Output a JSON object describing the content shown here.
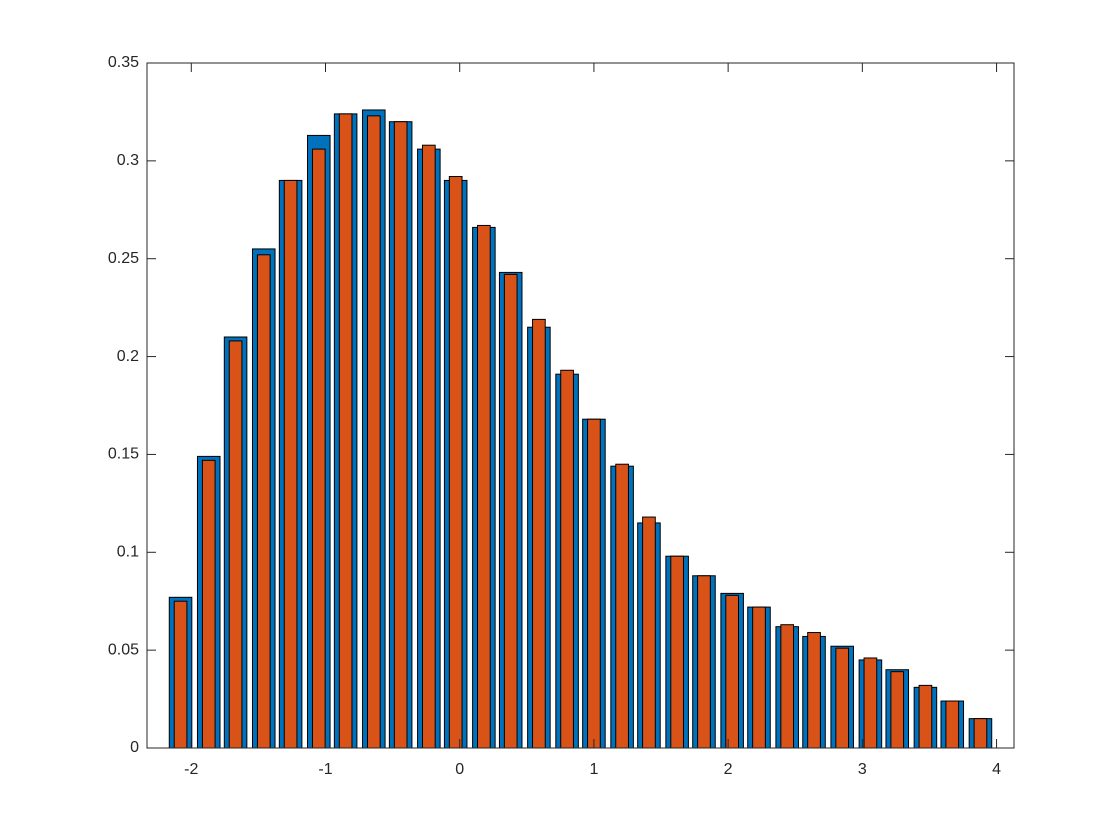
{
  "chart_data": {
    "type": "bar",
    "x": [
      -2.08,
      -1.87,
      -1.67,
      -1.46,
      -1.26,
      -1.05,
      -0.85,
      -0.64,
      -0.44,
      -0.23,
      -0.03,
      0.18,
      0.38,
      0.59,
      0.8,
      1.0,
      1.21,
      1.41,
      1.62,
      1.82,
      2.03,
      2.23,
      2.44,
      2.64,
      2.85,
      3.06,
      3.26,
      3.47,
      3.67,
      3.88
    ],
    "series": [
      {
        "color": "#0072BD",
        "values": [
          0.077,
          0.149,
          0.21,
          0.255,
          0.29,
          0.313,
          0.324,
          0.326,
          0.32,
          0.306,
          0.29,
          0.266,
          0.243,
          0.215,
          0.191,
          0.168,
          0.144,
          0.115,
          0.098,
          0.088,
          0.079,
          0.072,
          0.062,
          0.057,
          0.052,
          0.045,
          0.04,
          0.031,
          0.024,
          0.015
        ]
      },
      {
        "color": "#D95319",
        "values": [
          0.075,
          0.147,
          0.208,
          0.252,
          0.29,
          0.306,
          0.324,
          0.323,
          0.32,
          0.308,
          0.292,
          0.267,
          0.242,
          0.219,
          0.193,
          0.168,
          0.145,
          0.118,
          0.098,
          0.088,
          0.078,
          0.072,
          0.063,
          0.059,
          0.051,
          0.046,
          0.039,
          0.032,
          0.024,
          0.015
        ]
      }
    ],
    "xlim": [
      -2.33,
      4.13
    ],
    "xticks": [
      -2,
      -1,
      0,
      1,
      2,
      3,
      4
    ],
    "ylim": [
      0,
      0.35
    ],
    "yticks": [
      0,
      0.05,
      0.1,
      0.15,
      0.2,
      0.25,
      0.3,
      0.35
    ]
  }
}
